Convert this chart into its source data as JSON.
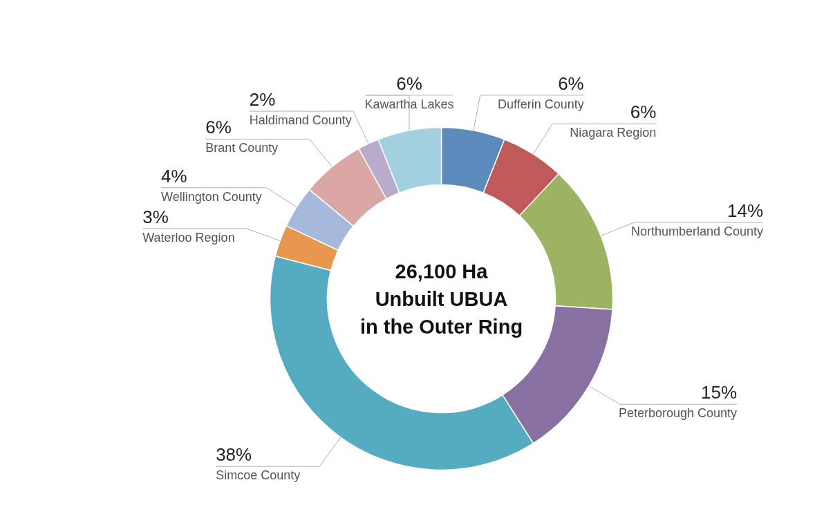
{
  "chart_data": {
    "type": "donut",
    "title": "26,100 Ha\nUnbuilt UBUA\nin the Outer Ring",
    "categories": [
      "Dufferin County",
      "Niagara Region",
      "Northumberland County",
      "Peterborough County",
      "Simcoe County",
      "Waterloo Region",
      "Wellington County",
      "Brant County",
      "Haldimand County",
      "Kawartha Lakes"
    ],
    "values": [
      6,
      6,
      14,
      15,
      38,
      3,
      4,
      6,
      2,
      6
    ],
    "value_labels": [
      "6%",
      "6%",
      "14%",
      "15%",
      "38%",
      "3%",
      "4%",
      "6%",
      "2%",
      "6%"
    ],
    "colors": [
      "#5b8abb",
      "#c0595a",
      "#9bb362",
      "#8870a3",
      "#55abc0",
      "#e8974f",
      "#a5b9dc",
      "#dba6a6",
      "#b8abcb",
      "#a3d0de"
    ],
    "legend": false
  }
}
